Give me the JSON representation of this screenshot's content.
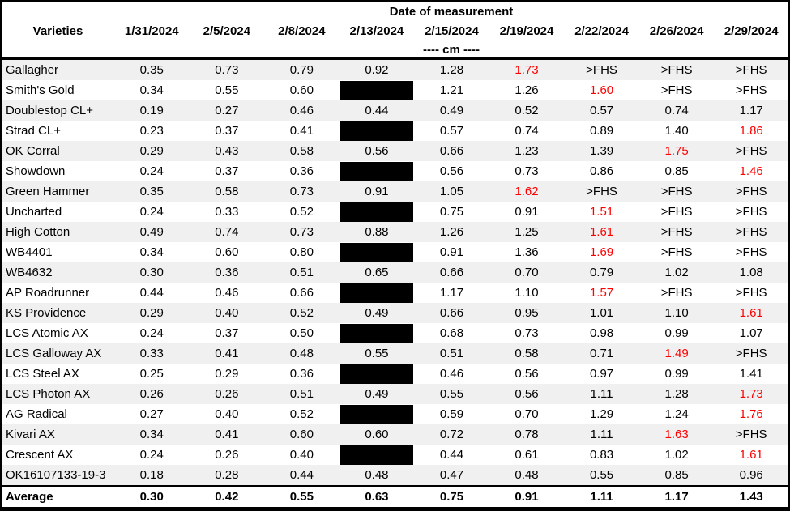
{
  "chart_data": {
    "type": "table",
    "title": "Date of measurement",
    "varieties_header": "Varieties",
    "unit_label": "---- cm ----",
    "columns": [
      "1/31/2024",
      "2/5/2024",
      "2/8/2024",
      "2/13/2024",
      "2/15/2024",
      "2/19/2024",
      "2/22/2024",
      "2/26/2024",
      "2/29/2024"
    ],
    "rows": [
      {
        "variety": "Gallagher",
        "values": [
          "0.35",
          "0.73",
          "0.79",
          "0.92",
          "1.28",
          "1.73",
          ">FHS",
          ">FHS",
          ">FHS"
        ],
        "red": [
          5
        ],
        "redacted": []
      },
      {
        "variety": "Smith's Gold",
        "values": [
          "0.34",
          "0.55",
          "0.60",
          null,
          "1.21",
          "1.26",
          "1.60",
          ">FHS",
          ">FHS"
        ],
        "red": [
          6
        ],
        "redacted": [
          3
        ]
      },
      {
        "variety": "Doublestop CL+",
        "values": [
          "0.19",
          "0.27",
          "0.46",
          "0.44",
          "0.49",
          "0.52",
          "0.57",
          "0.74",
          "1.17"
        ],
        "red": [],
        "redacted": []
      },
      {
        "variety": "Strad CL+",
        "values": [
          "0.23",
          "0.37",
          "0.41",
          null,
          "0.57",
          "0.74",
          "0.89",
          "1.40",
          "1.86"
        ],
        "red": [
          8
        ],
        "redacted": [
          3
        ]
      },
      {
        "variety": "OK Corral",
        "values": [
          "0.29",
          "0.43",
          "0.58",
          "0.56",
          "0.66",
          "1.23",
          "1.39",
          "1.75",
          ">FHS"
        ],
        "red": [
          7
        ],
        "redacted": []
      },
      {
        "variety": "Showdown",
        "values": [
          "0.24",
          "0.37",
          "0.36",
          null,
          "0.56",
          "0.73",
          "0.86",
          "0.85",
          "1.46"
        ],
        "red": [
          8
        ],
        "redacted": [
          3
        ]
      },
      {
        "variety": "Green Hammer",
        "values": [
          "0.35",
          "0.58",
          "0.73",
          "0.91",
          "1.05",
          "1.62",
          ">FHS",
          ">FHS",
          ">FHS"
        ],
        "red": [
          5
        ],
        "redacted": []
      },
      {
        "variety": "Uncharted",
        "values": [
          "0.24",
          "0.33",
          "0.52",
          null,
          "0.75",
          "0.91",
          "1.51",
          ">FHS",
          ">FHS"
        ],
        "red": [
          6
        ],
        "redacted": [
          3
        ]
      },
      {
        "variety": "High Cotton",
        "values": [
          "0.49",
          "0.74",
          "0.73",
          "0.88",
          "1.26",
          "1.25",
          "1.61",
          ">FHS",
          ">FHS"
        ],
        "red": [
          6
        ],
        "redacted": []
      },
      {
        "variety": "WB4401",
        "values": [
          "0.34",
          "0.60",
          "0.80",
          null,
          "0.91",
          "1.36",
          "1.69",
          ">FHS",
          ">FHS"
        ],
        "red": [
          6
        ],
        "redacted": [
          3
        ]
      },
      {
        "variety": "WB4632",
        "values": [
          "0.30",
          "0.36",
          "0.51",
          "0.65",
          "0.66",
          "0.70",
          "0.79",
          "1.02",
          "1.08"
        ],
        "red": [],
        "redacted": []
      },
      {
        "variety": "AP Roadrunner",
        "values": [
          "0.44",
          "0.46",
          "0.66",
          null,
          "1.17",
          "1.10",
          "1.57",
          ">FHS",
          ">FHS"
        ],
        "red": [
          6
        ],
        "redacted": [
          3
        ]
      },
      {
        "variety": "KS Providence",
        "values": [
          "0.29",
          "0.40",
          "0.52",
          "0.49",
          "0.66",
          "0.95",
          "1.01",
          "1.10",
          "1.61"
        ],
        "red": [
          8
        ],
        "redacted": []
      },
      {
        "variety": "LCS Atomic AX",
        "values": [
          "0.24",
          "0.37",
          "0.50",
          null,
          "0.68",
          "0.73",
          "0.98",
          "0.99",
          "1.07"
        ],
        "red": [],
        "redacted": [
          3
        ]
      },
      {
        "variety": "LCS Galloway AX",
        "values": [
          "0.33",
          "0.41",
          "0.48",
          "0.55",
          "0.51",
          "0.58",
          "0.71",
          "1.49",
          ">FHS"
        ],
        "red": [
          7
        ],
        "redacted": []
      },
      {
        "variety": "LCS Steel AX",
        "values": [
          "0.25",
          "0.29",
          "0.36",
          null,
          "0.46",
          "0.56",
          "0.97",
          "0.99",
          "1.41"
        ],
        "red": [],
        "redacted": [
          3
        ]
      },
      {
        "variety": "LCS Photon AX",
        "values": [
          "0.26",
          "0.26",
          "0.51",
          "0.49",
          "0.55",
          "0.56",
          "1.11",
          "1.28",
          "1.73"
        ],
        "red": [
          8
        ],
        "redacted": []
      },
      {
        "variety": "AG Radical",
        "values": [
          "0.27",
          "0.40",
          "0.52",
          null,
          "0.59",
          "0.70",
          "1.29",
          "1.24",
          "1.76"
        ],
        "red": [
          8
        ],
        "redacted": [
          3
        ]
      },
      {
        "variety": "Kivari AX",
        "values": [
          "0.34",
          "0.41",
          "0.60",
          "0.60",
          "0.72",
          "0.78",
          "1.11",
          "1.63",
          ">FHS"
        ],
        "red": [
          7
        ],
        "redacted": []
      },
      {
        "variety": "Crescent AX",
        "values": [
          "0.24",
          "0.26",
          "0.40",
          null,
          "0.44",
          "0.61",
          "0.83",
          "1.02",
          "1.61"
        ],
        "red": [
          8
        ],
        "redacted": [
          3
        ]
      },
      {
        "variety": "OK16107133-19-3",
        "values": [
          "0.18",
          "0.28",
          "0.44",
          "0.48",
          "0.47",
          "0.48",
          "0.55",
          "0.85",
          "0.96"
        ],
        "red": [],
        "redacted": []
      }
    ],
    "average_row": {
      "label": "Average",
      "values": [
        "0.30",
        "0.42",
        "0.55",
        "0.63",
        "0.75",
        "0.91",
        "1.11",
        "1.17",
        "1.43"
      ]
    },
    "colors": {
      "red_text": "#FF0000",
      "stripe": "#F0F0F0",
      "redaction": "#000000",
      "border": "#000000"
    },
    "layout_hints": {
      "striped_rows": true,
      "first_data_row_striped": true,
      "grid": "horizontal-outer-borders-only"
    }
  }
}
